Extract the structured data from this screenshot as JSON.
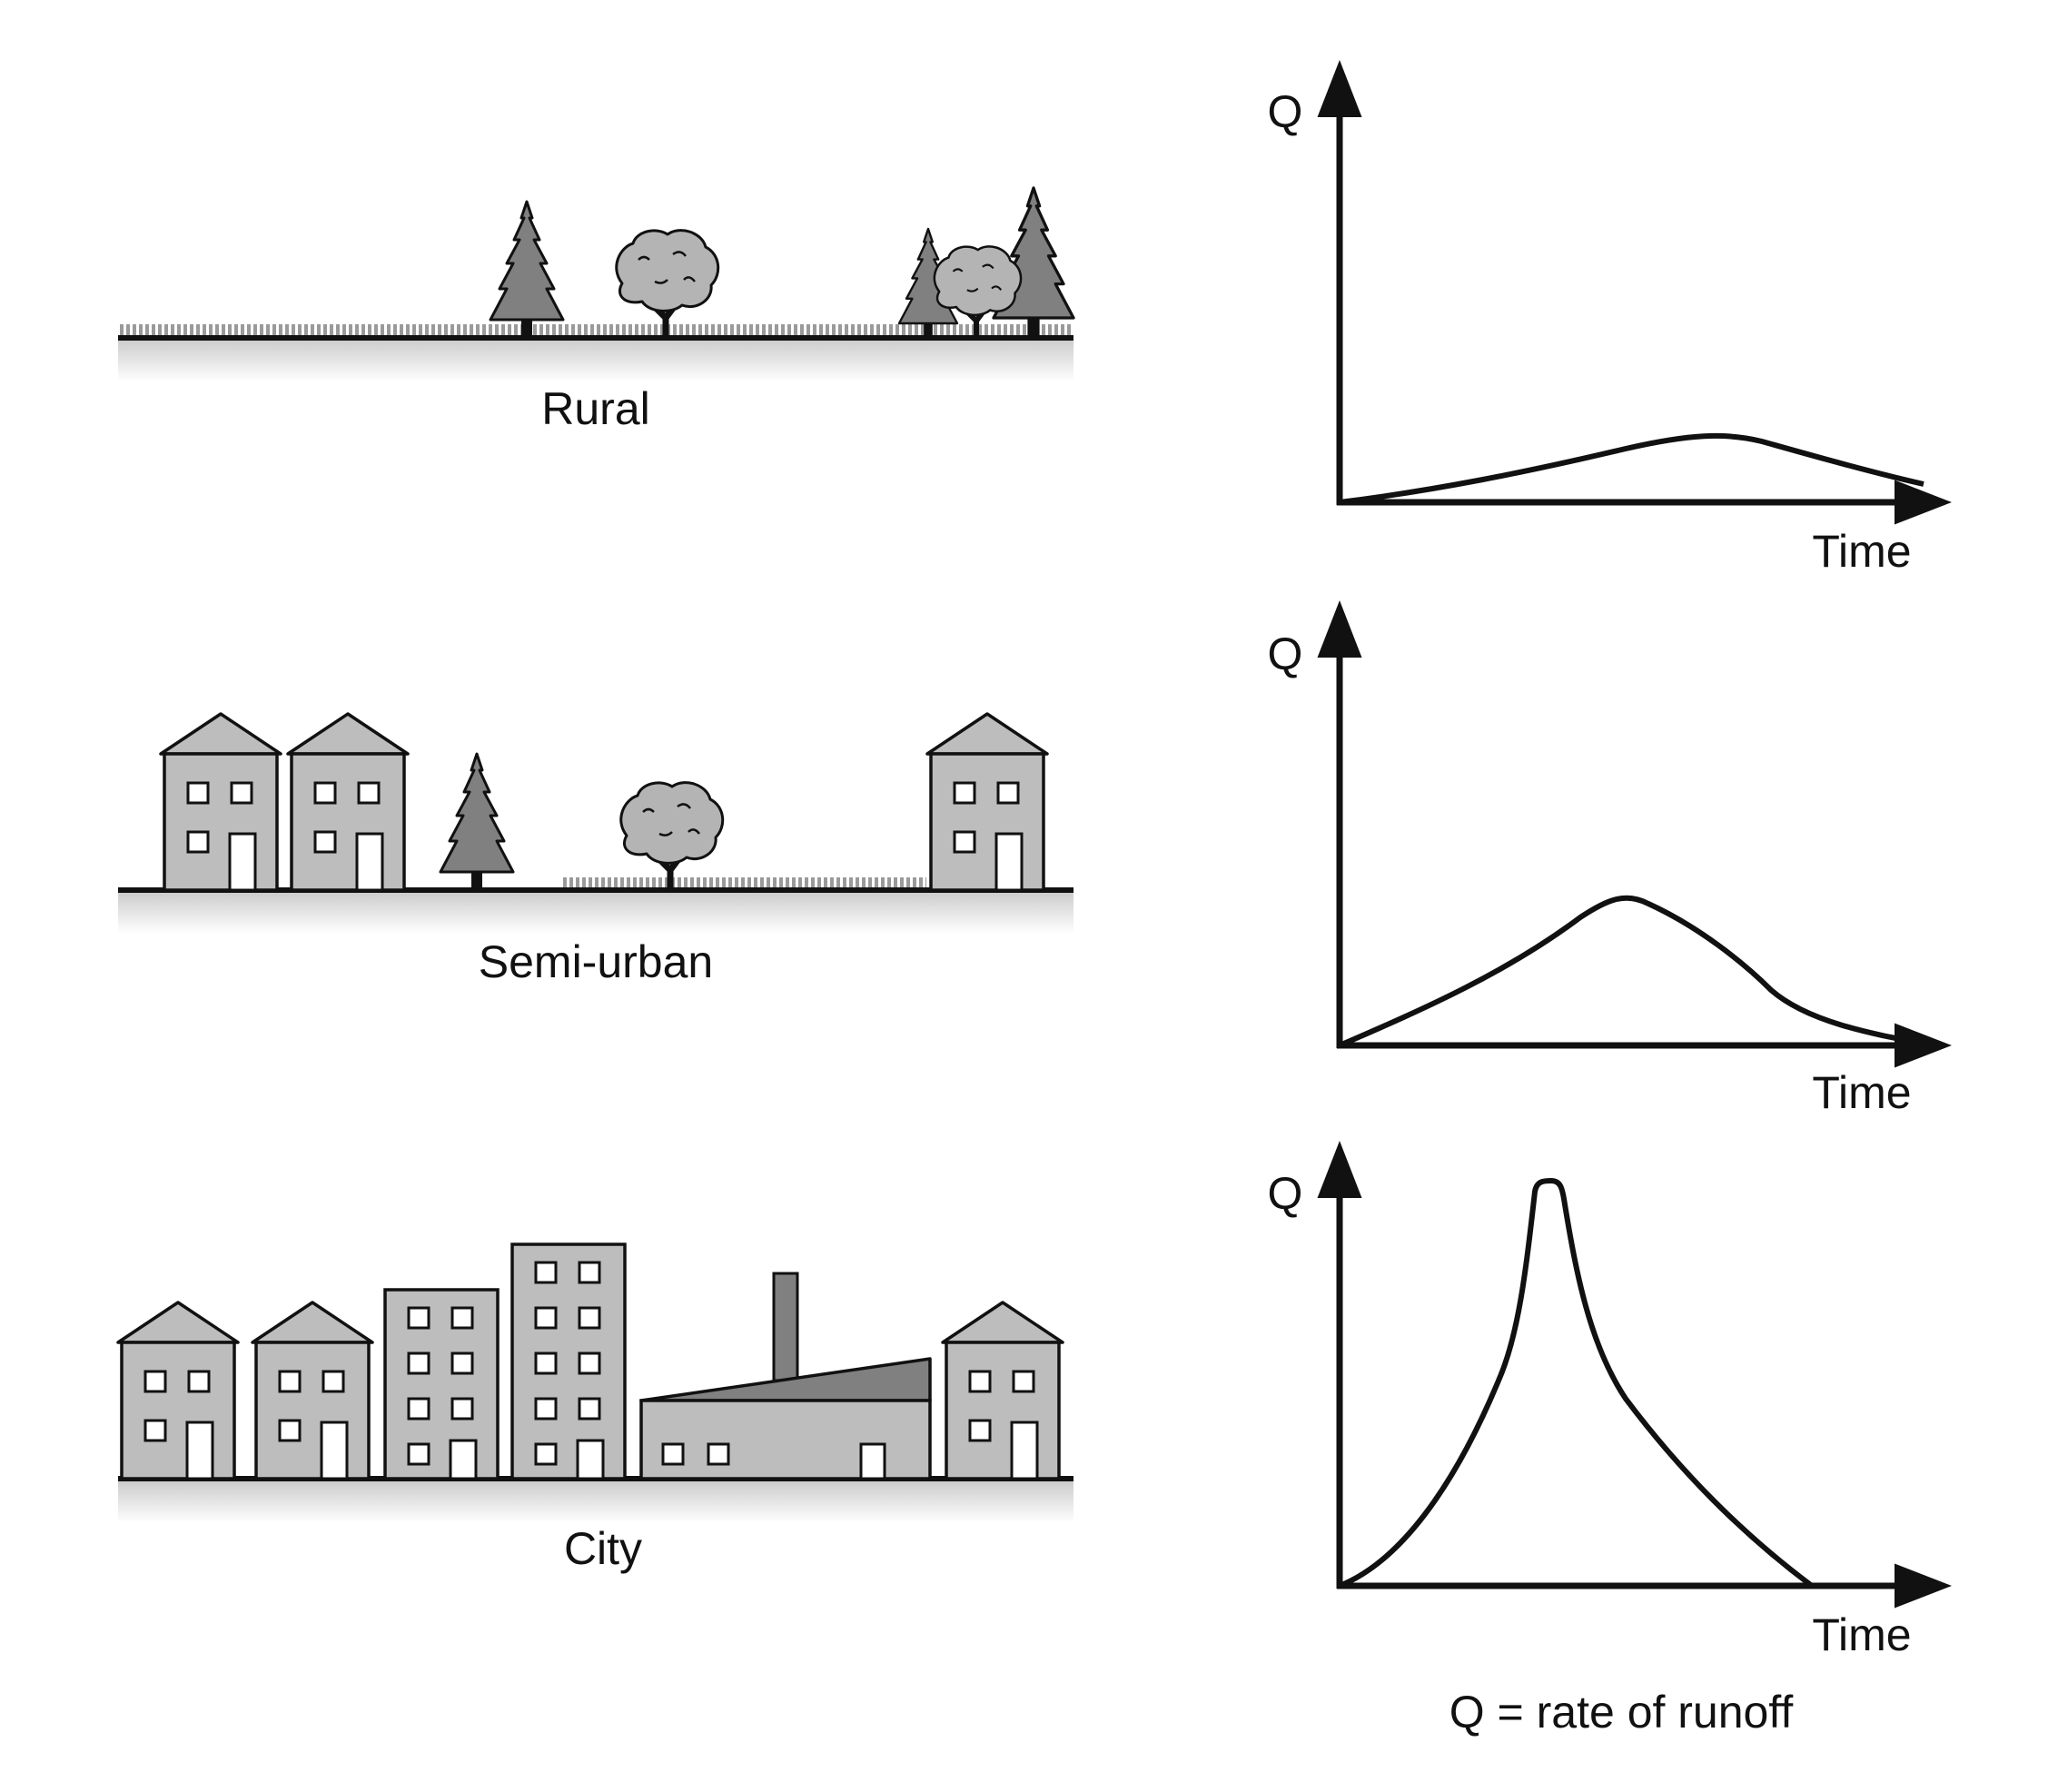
{
  "rows": [
    {
      "scene_label": "Rural",
      "graph": {
        "y_label": "Q",
        "x_label": "Time"
      }
    },
    {
      "scene_label": "Semi-urban",
      "graph": {
        "y_label": "Q",
        "x_label": "Time"
      }
    },
    {
      "scene_label": "City",
      "graph": {
        "y_label": "Q",
        "x_label": "Time"
      }
    }
  ],
  "footnote": "Q = rate of runoff",
  "colors": {
    "ink": "#111111",
    "building_fill": "#bdbdbd",
    "tree_dark": "#808080",
    "tree_light": "#b4b4b4",
    "grass": "#9a9a9a"
  }
}
